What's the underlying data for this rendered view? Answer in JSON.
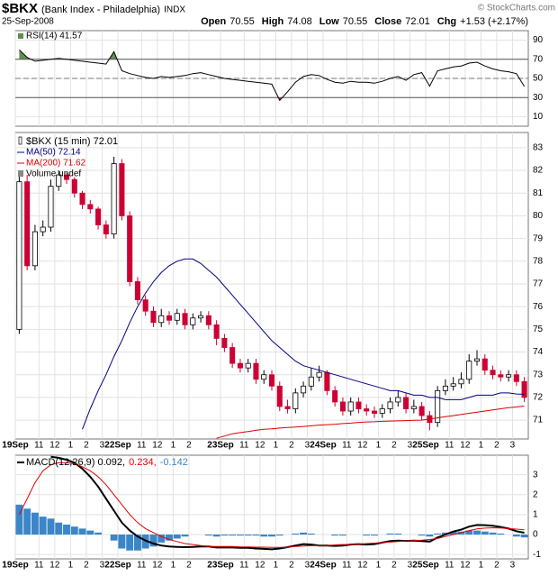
{
  "header": {
    "symbol": "$BKX",
    "name": "(Bank Index - Philadelphia)",
    "exchange": "INDX",
    "date": "25-Sep-2008",
    "copyright": "© StockCharts.com",
    "quote": [
      {
        "label": "Open",
        "value": "70.55"
      },
      {
        "label": "High",
        "value": "74.08"
      },
      {
        "label": "Low",
        "value": "70.55"
      },
      {
        "label": "Close",
        "value": "72.01"
      },
      {
        "label": "Chg",
        "value": "+1.53 (+2.17%)"
      }
    ]
  },
  "chart_data": [
    {
      "type": "line",
      "title": "RSI(14) 41.57",
      "color": "#000000",
      "ylim": [
        0,
        100
      ],
      "yticks": [
        10,
        30,
        50,
        70,
        90
      ],
      "bands": [
        30,
        70
      ],
      "midline": 50,
      "over_color": "#5f8f4e",
      "under_color": "#c0392b",
      "values": [
        80,
        72,
        68,
        69,
        70,
        71,
        70,
        69,
        68,
        67,
        66,
        65,
        78,
        58,
        55,
        53,
        51,
        50,
        52,
        51,
        52,
        53,
        55,
        56,
        54,
        52,
        50,
        49,
        48,
        47,
        46,
        45,
        44,
        27,
        36,
        46,
        52,
        54,
        53,
        49,
        46,
        45,
        47,
        46,
        46,
        45,
        47,
        50,
        52,
        48,
        54,
        56,
        42,
        58,
        60,
        62,
        63,
        66,
        67,
        63,
        60,
        58,
        57,
        55,
        41.57
      ]
    },
    {
      "type": "candlestick",
      "title": "$BKX (15 min) 72.01",
      "up_color": "#ffffff",
      "down_color": "#cc0033",
      "volume_label": "Volume undef",
      "ylim": [
        70.17,
        83.67
      ],
      "yticks": [
        71,
        72,
        73,
        74,
        75,
        76,
        77,
        78,
        79,
        80,
        81,
        82,
        83
      ],
      "xlim": [
        0,
        65
      ],
      "xticks": [
        {
          "value": 0,
          "label": "19Sep"
        },
        {
          "value": 3,
          "label": "11"
        },
        {
          "value": 5,
          "label": "12"
        },
        {
          "value": 7,
          "label": "1"
        },
        {
          "value": 9,
          "label": "2"
        },
        {
          "value": 11,
          "label": "3"
        },
        {
          "value": 13,
          "label": "22Sep"
        },
        {
          "value": 16,
          "label": "11"
        },
        {
          "value": 18,
          "label": "12"
        },
        {
          "value": 20,
          "label": "1"
        },
        {
          "value": 22,
          "label": "2"
        },
        {
          "value": 26,
          "label": "23Sep"
        },
        {
          "value": 29,
          "label": "11"
        },
        {
          "value": 31,
          "label": "12"
        },
        {
          "value": 33,
          "label": "1"
        },
        {
          "value": 35,
          "label": "2"
        },
        {
          "value": 37,
          "label": "3"
        },
        {
          "value": 39,
          "label": "24Sep"
        },
        {
          "value": 42,
          "label": "11"
        },
        {
          "value": 44,
          "label": "12"
        },
        {
          "value": 46,
          "label": "1"
        },
        {
          "value": 48,
          "label": "2"
        },
        {
          "value": 50,
          "label": "3"
        },
        {
          "value": 52,
          "label": "25Sep"
        },
        {
          "value": 55,
          "label": "11"
        },
        {
          "value": 57,
          "label": "12"
        },
        {
          "value": 59,
          "label": "1"
        },
        {
          "value": 61,
          "label": "2"
        },
        {
          "value": 63,
          "label": "3"
        }
      ],
      "open": [
        75.0,
        81.5,
        77.8,
        79.3,
        79.5,
        81.3,
        81.8,
        81.6,
        81.0,
        80.5,
        80.3,
        79.6,
        79.2,
        82.3,
        80.0,
        77.1,
        76.3,
        75.8,
        75.3,
        75.6,
        75.4,
        75.7,
        75.2,
        75.5,
        75.6,
        75.2,
        74.6,
        74.2,
        73.5,
        73.3,
        73.5,
        72.8,
        73.0,
        72.5,
        71.6,
        71.5,
        72.2,
        72.5,
        72.9,
        73.1,
        72.3,
        71.8,
        71.4,
        71.8,
        71.5,
        71.4,
        71.3,
        71.5,
        71.8,
        72.0,
        71.5,
        71.6,
        71.2,
        70.9,
        72.3,
        72.5,
        72.6,
        72.8,
        73.6,
        73.7,
        73.2,
        73.0,
        72.9,
        73.0,
        72.7
      ],
      "high": [
        81.9,
        81.8,
        79.6,
        79.8,
        81.6,
        82.0,
        81.9,
        81.7,
        81.1,
        80.7,
        80.4,
        79.8,
        82.6,
        82.5,
        80.2,
        77.3,
        76.5,
        76.0,
        75.9,
        75.8,
        75.9,
        75.9,
        75.7,
        75.8,
        75.8,
        75.4,
        74.8,
        74.4,
        73.7,
        73.7,
        73.7,
        73.2,
        73.2,
        72.7,
        71.9,
        72.4,
        72.7,
        73.3,
        73.4,
        73.2,
        72.5,
        72.0,
        72.0,
        72.0,
        71.7,
        71.6,
        71.7,
        72.0,
        72.3,
        72.2,
        71.9,
        71.8,
        71.4,
        72.5,
        72.8,
        72.9,
        73.1,
        73.9,
        74.08,
        73.9,
        73.4,
        73.2,
        73.2,
        73.2,
        72.9
      ],
      "low": [
        74.8,
        77.6,
        77.6,
        79.1,
        79.3,
        81.1,
        81.4,
        80.8,
        80.3,
        80.1,
        79.4,
        79.0,
        79.0,
        79.8,
        76.9,
        76.1,
        75.6,
        75.1,
        75.1,
        75.2,
        75.2,
        75.0,
        75.0,
        75.3,
        75.0,
        74.3,
        74.0,
        73.3,
        73.1,
        73.1,
        72.6,
        72.6,
        72.3,
        71.4,
        71.3,
        71.3,
        72.0,
        72.3,
        72.7,
        72.1,
        71.6,
        71.2,
        71.2,
        71.3,
        71.2,
        71.1,
        71.1,
        71.3,
        71.6,
        71.3,
        71.3,
        71.0,
        70.55,
        70.7,
        72.1,
        72.3,
        72.4,
        72.6,
        73.4,
        73.0,
        72.8,
        72.7,
        72.7,
        72.5,
        71.8
      ],
      "close": [
        81.5,
        77.8,
        79.3,
        79.5,
        81.3,
        81.8,
        81.6,
        81.0,
        80.5,
        80.3,
        79.6,
        79.2,
        82.3,
        80.0,
        77.1,
        76.3,
        75.8,
        75.3,
        75.6,
        75.4,
        75.7,
        75.2,
        75.5,
        75.6,
        75.2,
        74.6,
        74.2,
        73.5,
        73.3,
        73.5,
        72.8,
        73.0,
        72.5,
        71.6,
        71.5,
        72.2,
        72.5,
        72.9,
        73.1,
        72.3,
        71.8,
        71.4,
        71.8,
        71.5,
        71.4,
        71.3,
        71.5,
        71.8,
        72.0,
        71.5,
        71.6,
        71.2,
        70.9,
        72.3,
        72.5,
        72.6,
        72.8,
        73.6,
        73.7,
        73.2,
        73.0,
        72.9,
        73.0,
        72.7,
        72.0
      ],
      "series": [
        {
          "name": "MA(50) 72.14",
          "color": "#000080",
          "values": [
            null,
            null,
            null,
            null,
            null,
            null,
            null,
            null,
            70.6,
            71.5,
            72.3,
            73.0,
            73.8,
            74.5,
            75.3,
            76.0,
            76.6,
            77.1,
            77.5,
            77.8,
            78.0,
            78.1,
            78.1,
            77.9,
            77.6,
            77.3,
            76.9,
            76.5,
            76.1,
            75.7,
            75.3,
            74.9,
            74.5,
            74.2,
            73.9,
            73.6,
            73.4,
            73.3,
            73.2,
            73.1,
            73.0,
            72.9,
            72.8,
            72.7,
            72.6,
            72.5,
            72.4,
            72.3,
            72.3,
            72.2,
            72.1,
            72.1,
            72.0,
            72.0,
            71.9,
            71.9,
            71.9,
            72.0,
            72.1,
            72.1,
            72.1,
            72.2,
            72.2,
            72.15,
            72.14
          ]
        },
        {
          "name": "MA(200) 71.62",
          "color": "#dd0000",
          "values": [
            null,
            null,
            null,
            null,
            null,
            null,
            null,
            null,
            null,
            null,
            null,
            null,
            null,
            null,
            null,
            null,
            null,
            null,
            null,
            null,
            null,
            null,
            null,
            null,
            null,
            70.2,
            70.3,
            70.4,
            70.45,
            70.5,
            70.55,
            70.6,
            70.62,
            70.65,
            70.68,
            70.7,
            70.72,
            70.75,
            70.78,
            70.8,
            70.82,
            70.85,
            70.87,
            70.9,
            70.92,
            70.93,
            70.95,
            70.96,
            70.97,
            70.98,
            70.99,
            71.0,
            71.05,
            71.1,
            71.15,
            71.2,
            71.25,
            71.3,
            71.35,
            71.4,
            71.45,
            71.5,
            71.55,
            71.58,
            71.62
          ]
        }
      ]
    },
    {
      "type": "macd",
      "ylim": [
        -1.22,
        3.98
      ],
      "yticks": [
        -1,
        0,
        1,
        2,
        3
      ],
      "series": [
        {
          "name": "MACD(12,26,9) 0.092,",
          "color": "#000000",
          "values": [
            null,
            null,
            null,
            null,
            3.9,
            3.85,
            3.75,
            3.6,
            3.3,
            2.9,
            2.4,
            1.8,
            1.2,
            0.6,
            0.2,
            -0.1,
            -0.3,
            -0.45,
            -0.55,
            -0.6,
            -0.62,
            -0.63,
            -0.62,
            -0.6,
            -0.6,
            -0.65,
            -0.65,
            -0.65,
            -0.67,
            -0.67,
            -0.7,
            -0.72,
            -0.74,
            -0.7,
            -0.63,
            -0.55,
            -0.48,
            -0.5,
            -0.55,
            -0.55,
            -0.57,
            -0.55,
            -0.5,
            -0.48,
            -0.5,
            -0.48,
            -0.4,
            -0.33,
            -0.3,
            -0.32,
            -0.3,
            -0.33,
            -0.35,
            -0.15,
            0.0,
            0.15,
            0.25,
            0.4,
            0.48,
            0.47,
            0.44,
            0.38,
            0.3,
            0.17,
            0.092
          ]
        },
        {
          "name": "0.234,",
          "color": "#dd0000",
          "values": [
            1.0,
            1.8,
            2.6,
            3.2,
            3.5,
            3.6,
            3.6,
            3.55,
            3.4,
            3.2,
            2.9,
            2.5,
            2.0,
            1.5,
            1.0,
            0.6,
            0.3,
            0.1,
            -0.1,
            -0.25,
            -0.35,
            -0.45,
            -0.5,
            -0.55,
            -0.6,
            -0.6,
            -0.6,
            -0.6,
            -0.62,
            -0.62,
            -0.63,
            -0.63,
            -0.64,
            -0.64,
            -0.63,
            -0.6,
            -0.58,
            -0.56,
            -0.55,
            -0.55,
            -0.52,
            -0.5,
            -0.5,
            -0.48,
            -0.45,
            -0.43,
            -0.4,
            -0.38,
            -0.35,
            -0.32,
            -0.3,
            -0.28,
            -0.25,
            -0.2,
            -0.1,
            0.0,
            0.1,
            0.2,
            0.28,
            0.32,
            0.34,
            0.33,
            0.3,
            0.27,
            0.234
          ]
        },
        {
          "name": "-0.142",
          "color": "#3a86c8",
          "type": "bar",
          "values": [
            1.5,
            1.3,
            1.1,
            0.9,
            0.8,
            0.6,
            0.5,
            0.4,
            0.3,
            0.2,
            0.1,
            0.0,
            -0.3,
            -0.7,
            -0.8,
            -0.8,
            -0.7,
            -0.6,
            -0.4,
            -0.3,
            -0.2,
            -0.1,
            0.0,
            0.0,
            -0.05,
            -0.1,
            -0.05,
            -0.05,
            -0.05,
            -0.05,
            -0.05,
            -0.1,
            -0.1,
            -0.05,
            0.0,
            0.05,
            0.1,
            0.05,
            0.0,
            0.0,
            -0.05,
            -0.05,
            0.0,
            0.0,
            -0.05,
            -0.05,
            0.0,
            0.05,
            0.05,
            0.0,
            0.0,
            -0.05,
            -0.1,
            0.05,
            0.1,
            0.15,
            0.15,
            0.2,
            0.2,
            0.15,
            0.1,
            0.05,
            0.0,
            -0.1,
            -0.142
          ]
        }
      ]
    }
  ]
}
